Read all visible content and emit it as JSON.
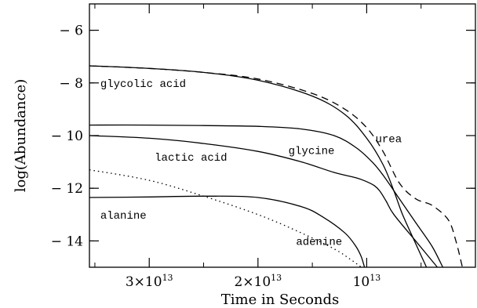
{
  "chart_data": {
    "type": "line",
    "title": "",
    "xlabel": "Time in Seconds",
    "ylabel": "log(Abundance)",
    "xaxis_note": "time decreases to the right (time remaining)",
    "xlim": [
      35500000000000.0,
      0
    ],
    "ylim": [
      -15,
      -5
    ],
    "x_ticks": [
      {
        "value": 30000000000000.0,
        "mant": "3",
        "exp": "13"
      },
      {
        "value": 20000000000000.0,
        "mant": "2",
        "exp": "13"
      },
      {
        "value": 10000000000000.0,
        "mant": "",
        "exp": "13"
      }
    ],
    "x_ticks_base": "10",
    "x_ticks_times": "×",
    "y_ticks": [
      {
        "value": -6,
        "label": "− 6"
      },
      {
        "value": -8,
        "label": "− 8"
      },
      {
        "value": -10,
        "label": "− 10"
      },
      {
        "value": -12,
        "label": "− 12"
      },
      {
        "value": -14,
        "label": "− 14"
      }
    ],
    "grid": false,
    "series": [
      {
        "label": "glycolic acid",
        "style": "solid",
        "x": [
          35500000000000.0,
          30000000000000.0,
          25000000000000.0,
          20000000000000.0,
          15000000000000.0,
          12000000000000.0,
          10000000000000.0,
          8500000000000.0,
          7500000000000.0,
          6700000000000.0,
          5500000000000.0,
          4500000000000.0
        ],
        "y": [
          -7.35,
          -7.45,
          -7.6,
          -7.9,
          -8.5,
          -9.2,
          -10.1,
          -11.1,
          -12.1,
          -13.0,
          -14.1,
          -15.0
        ]
      },
      {
        "label": "urea",
        "style": "dashed",
        "x": [
          35500000000000.0,
          30000000000000.0,
          25000000000000.0,
          20000000000000.0,
          15000000000000.0,
          12000000000000.0,
          10000000000000.0,
          8500000000000.0,
          7000000000000.0,
          5500000000000.0,
          4000000000000.0,
          2500000000000.0,
          1800000000000.0,
          1200000000000.0
        ],
        "y": [
          -7.35,
          -7.45,
          -7.6,
          -7.85,
          -8.4,
          -9.0,
          -9.7,
          -10.6,
          -11.8,
          -12.4,
          -12.65,
          -13.2,
          -14.0,
          -15.0
        ]
      },
      {
        "label": "glycine",
        "style": "solid",
        "x": [
          35500000000000.0,
          30000000000000.0,
          25000000000000.0,
          20000000000000.0,
          16000000000000.0,
          13000000000000.0,
          11000000000000.0,
          9500000000000.0,
          8500000000000.0,
          7000000000000.0,
          5500000000000.0,
          4000000000000.0,
          3000000000000.0
        ],
        "y": [
          -9.6,
          -9.6,
          -9.62,
          -9.65,
          -9.75,
          -10.0,
          -10.45,
          -11.0,
          -11.5,
          -12.4,
          -13.3,
          -14.2,
          -15.0
        ]
      },
      {
        "label": "lactic acid",
        "style": "solid",
        "x": [
          35500000000000.0,
          30000000000000.0,
          25000000000000.0,
          20000000000000.0,
          16000000000000.0,
          13000000000000.0,
          11000000000000.0,
          10000000000000.0,
          9300000000000.0,
          8800000000000.0,
          8200000000000.0,
          7500000000000.0,
          5500000000000.0,
          3500000000000.0
        ],
        "y": [
          -10.0,
          -10.1,
          -10.3,
          -10.6,
          -11.0,
          -11.4,
          -11.6,
          -11.75,
          -11.9,
          -12.1,
          -12.5,
          -13.0,
          -14.0,
          -15.0
        ]
      },
      {
        "label": "alanine",
        "style": "solid",
        "x": [
          35500000000000.0,
          30000000000000.0,
          25000000000000.0,
          20000000000000.0,
          16000000000000.0,
          14000000000000.0,
          12000000000000.0,
          11000000000000.0,
          10500000000000.0,
          10200000000000.0
        ],
        "y": [
          -12.35,
          -12.33,
          -12.3,
          -12.35,
          -12.7,
          -13.1,
          -13.7,
          -14.2,
          -14.6,
          -15.0
        ]
      },
      {
        "label": "adenine",
        "style": "dotted",
        "x": [
          35500000000000.0,
          30000000000000.0,
          25000000000000.0,
          20000000000000.0,
          16000000000000.0,
          13000000000000.0,
          11500000000000.0,
          10500000000000.0
        ],
        "y": [
          -11.3,
          -11.7,
          -12.3,
          -13.0,
          -13.7,
          -14.3,
          -14.7,
          -15.0
        ]
      }
    ],
    "annotations": [
      {
        "text": "glycolic acid",
        "x": 34500000000000.0,
        "y": -8.0,
        "anchor": "start"
      },
      {
        "text": "urea",
        "x": 9200000000000.0,
        "y": -10.1,
        "anchor": "start"
      },
      {
        "text": "glycine",
        "x": 17200000000000.0,
        "y": -10.55,
        "anchor": "start"
      },
      {
        "text": "lactic acid",
        "x": 29500000000000.0,
        "y": -10.8,
        "anchor": "start"
      },
      {
        "text": "alanine",
        "x": 34500000000000.0,
        "y": -13.0,
        "anchor": "start"
      },
      {
        "text": "adenine",
        "x": 16500000000000.0,
        "y": -14.0,
        "anchor": "start"
      }
    ]
  }
}
